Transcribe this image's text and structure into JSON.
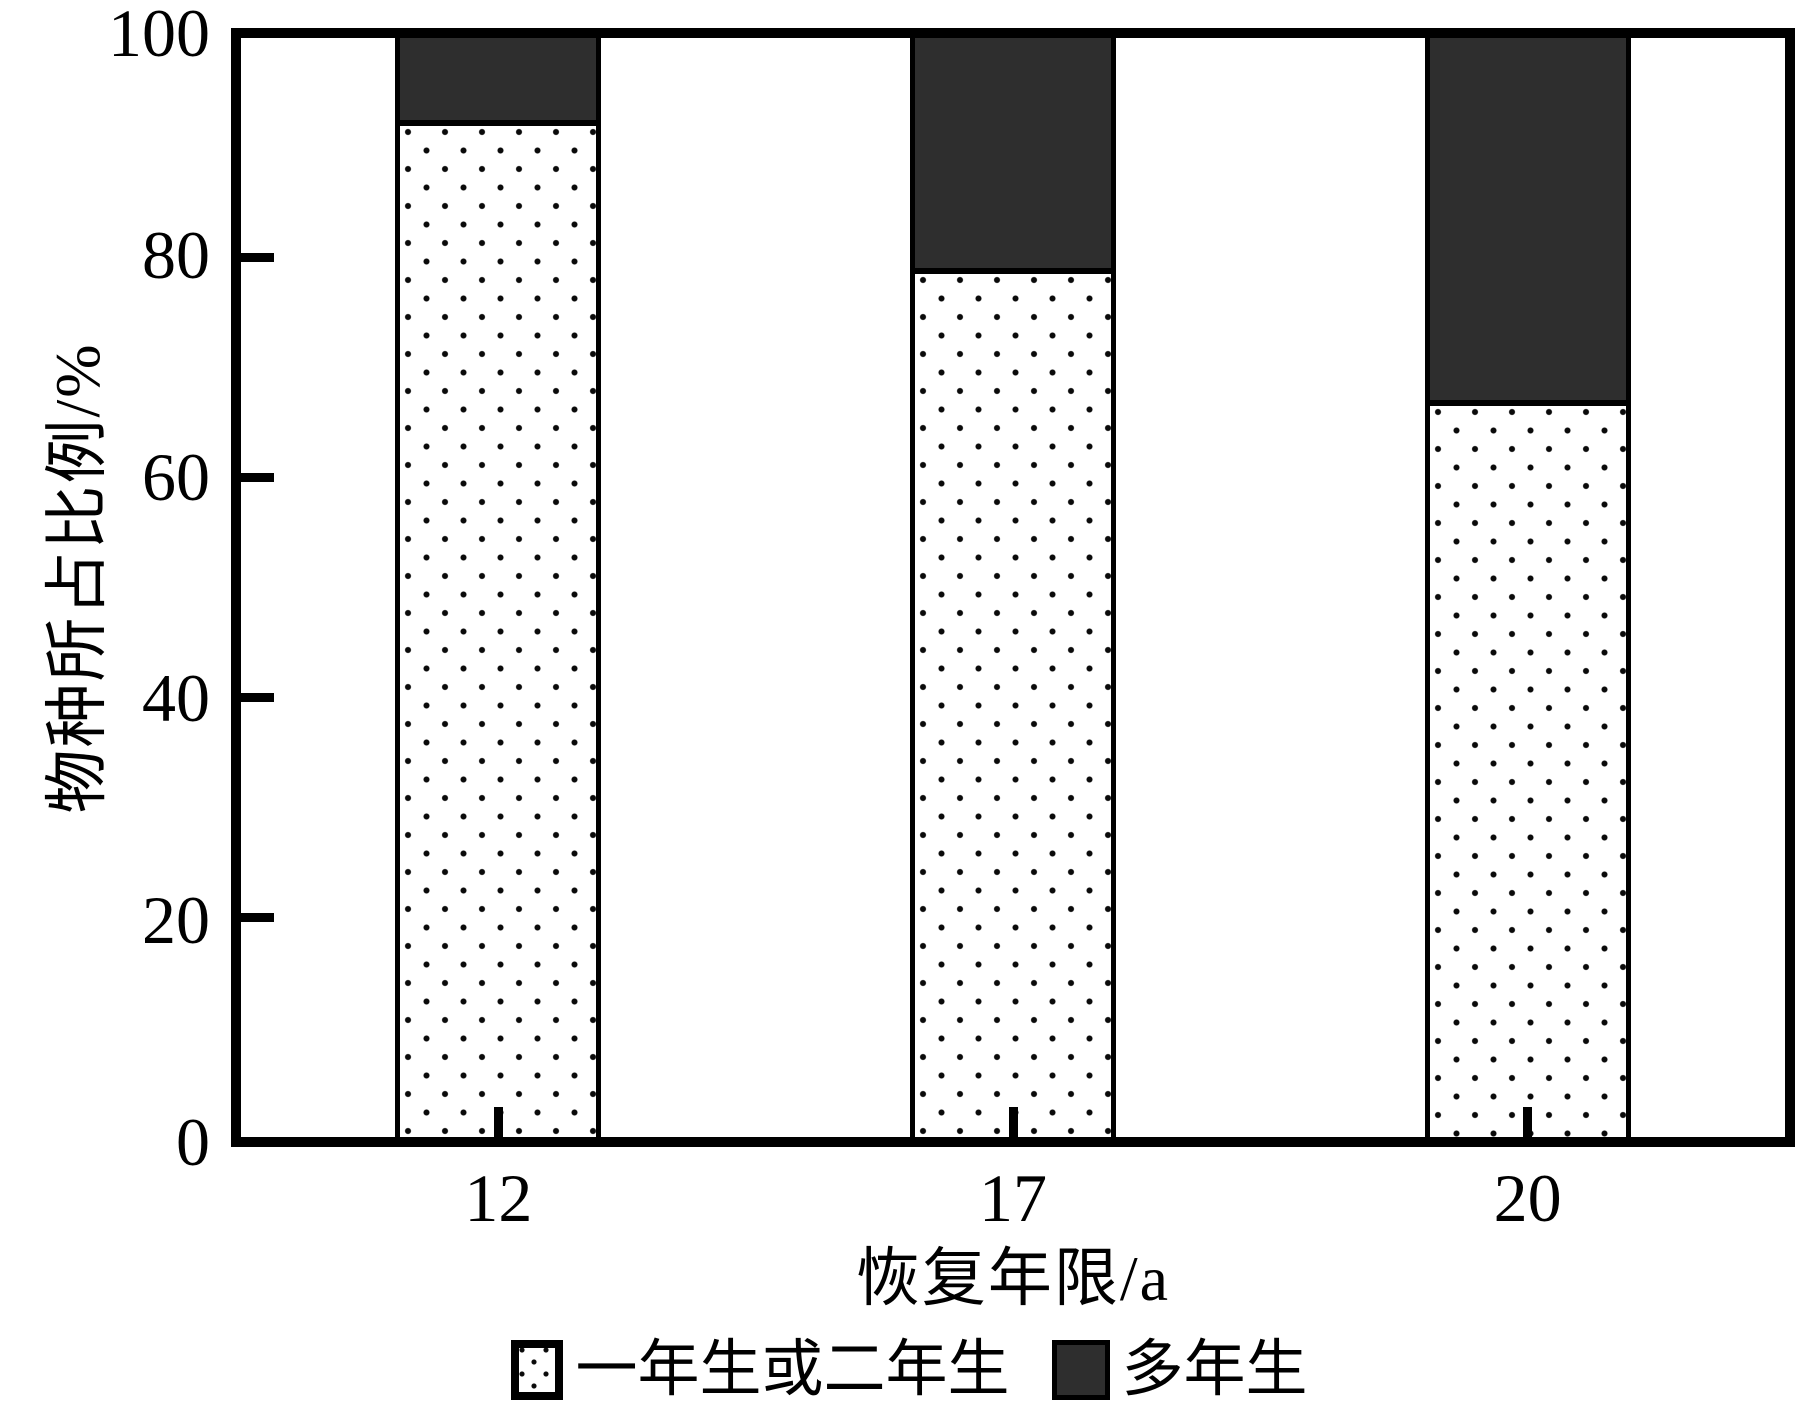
{
  "colors": {
    "bar_dark_fill": "#2e2e2e",
    "bar_dot_fill": "#0a0a0a",
    "axis_color": "#000000",
    "background": "#ffffff"
  },
  "chart_data": {
    "type": "bar",
    "stacked": true,
    "title": "",
    "xlabel": "恢复年限/a",
    "ylabel": "物种所占比例/%",
    "categories": [
      "12",
      "17",
      "20"
    ],
    "series": [
      {
        "name": "一年生或二年生",
        "style": "dotted",
        "values": [
          92,
          78.5,
          66.5
        ]
      },
      {
        "name": "多年生",
        "style": "solid-dark",
        "values": [
          8,
          21.5,
          33.5
        ]
      }
    ],
    "ylim": [
      0,
      100
    ],
    "yticks": [
      0,
      20,
      40,
      60,
      80,
      100
    ],
    "grid": false,
    "legend_position": "bottom"
  }
}
